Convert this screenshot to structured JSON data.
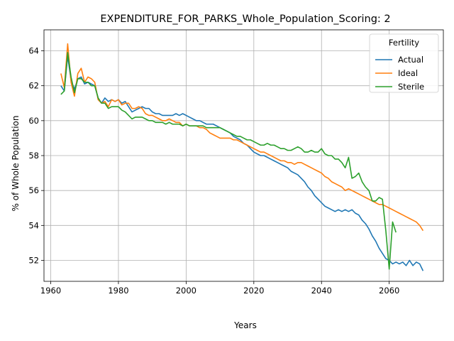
{
  "chart_data": {
    "type": "line",
    "title": "EXPENDITURE_FOR_PARKS_Whole_Population_Scoring: 2",
    "xlabel": "Years",
    "ylabel": "% of Whole Population",
    "xlim": [
      1958,
      2076
    ],
    "ylim": [
      50.8,
      65.2
    ],
    "xticks": [
      1960,
      1980,
      2000,
      2020,
      2040,
      2060
    ],
    "yticks": [
      52,
      54,
      56,
      58,
      60,
      62,
      64
    ],
    "grid": true,
    "legend": {
      "title": "Fertility",
      "placement": "top-right"
    },
    "series": [
      {
        "name": "Actual",
        "color": "#1f77b4",
        "points": [
          [
            1963,
            62.0
          ],
          [
            1964,
            61.7
          ],
          [
            1965,
            63.7
          ],
          [
            1966,
            62.3
          ],
          [
            1967,
            61.8
          ],
          [
            1968,
            62.4
          ],
          [
            1969,
            62.5
          ],
          [
            1970,
            62.1
          ],
          [
            1971,
            62.2
          ],
          [
            1972,
            62.1
          ],
          [
            1973,
            62.0
          ],
          [
            1974,
            61.3
          ],
          [
            1975,
            61.0
          ],
          [
            1976,
            61.3
          ],
          [
            1977,
            61.1
          ],
          [
            1978,
            61.2
          ],
          [
            1979,
            61.1
          ],
          [
            1980,
            61.2
          ],
          [
            1981,
            61.0
          ],
          [
            1982,
            61.1
          ],
          [
            1983,
            60.8
          ],
          [
            1984,
            60.5
          ],
          [
            1985,
            60.6
          ],
          [
            1986,
            60.7
          ],
          [
            1987,
            60.8
          ],
          [
            1988,
            60.7
          ],
          [
            1989,
            60.7
          ],
          [
            1990,
            60.5
          ],
          [
            1991,
            60.4
          ],
          [
            1992,
            60.4
          ],
          [
            1993,
            60.3
          ],
          [
            1994,
            60.3
          ],
          [
            1995,
            60.3
          ],
          [
            1996,
            60.3
          ],
          [
            1997,
            60.4
          ],
          [
            1998,
            60.3
          ],
          [
            1999,
            60.4
          ],
          [
            2000,
            60.3
          ],
          [
            2001,
            60.2
          ],
          [
            2002,
            60.1
          ],
          [
            2003,
            60.0
          ],
          [
            2004,
            60.0
          ],
          [
            2005,
            59.9
          ],
          [
            2006,
            59.8
          ],
          [
            2007,
            59.8
          ],
          [
            2008,
            59.8
          ],
          [
            2009,
            59.7
          ],
          [
            2010,
            59.6
          ],
          [
            2011,
            59.5
          ],
          [
            2012,
            59.4
          ],
          [
            2013,
            59.3
          ],
          [
            2014,
            59.1
          ],
          [
            2015,
            59.0
          ],
          [
            2016,
            58.9
          ],
          [
            2017,
            58.7
          ],
          [
            2018,
            58.6
          ],
          [
            2019,
            58.4
          ],
          [
            2020,
            58.2
          ],
          [
            2021,
            58.1
          ],
          [
            2022,
            58.0
          ],
          [
            2023,
            58.0
          ],
          [
            2024,
            57.9
          ],
          [
            2025,
            57.8
          ],
          [
            2026,
            57.7
          ],
          [
            2027,
            57.6
          ],
          [
            2028,
            57.5
          ],
          [
            2029,
            57.4
          ],
          [
            2030,
            57.3
          ],
          [
            2031,
            57.1
          ],
          [
            2032,
            57.0
          ],
          [
            2033,
            56.9
          ],
          [
            2034,
            56.7
          ],
          [
            2035,
            56.5
          ],
          [
            2036,
            56.2
          ],
          [
            2037,
            56.0
          ],
          [
            2038,
            55.7
          ],
          [
            2039,
            55.5
          ],
          [
            2040,
            55.3
          ],
          [
            2041,
            55.1
          ],
          [
            2042,
            55.0
          ],
          [
            2043,
            54.9
          ],
          [
            2044,
            54.8
          ],
          [
            2045,
            54.9
          ],
          [
            2046,
            54.8
          ],
          [
            2047,
            54.9
          ],
          [
            2048,
            54.8
          ],
          [
            2049,
            54.9
          ],
          [
            2050,
            54.7
          ],
          [
            2051,
            54.6
          ],
          [
            2052,
            54.3
          ],
          [
            2053,
            54.1
          ],
          [
            2054,
            53.8
          ],
          [
            2055,
            53.4
          ],
          [
            2056,
            53.1
          ],
          [
            2057,
            52.7
          ],
          [
            2058,
            52.4
          ],
          [
            2059,
            52.1
          ],
          [
            2060,
            52.0
          ],
          [
            2061,
            51.8
          ],
          [
            2062,
            51.9
          ],
          [
            2063,
            51.8
          ],
          [
            2064,
            51.9
          ],
          [
            2065,
            51.7
          ],
          [
            2066,
            52.0
          ],
          [
            2067,
            51.7
          ],
          [
            2068,
            51.9
          ],
          [
            2069,
            51.8
          ],
          [
            2070,
            51.4
          ]
        ]
      },
      {
        "name": "Ideal",
        "color": "#ff7f0e",
        "points": [
          [
            1963,
            62.7
          ],
          [
            1964,
            61.9
          ],
          [
            1965,
            64.4
          ],
          [
            1966,
            62.2
          ],
          [
            1967,
            61.4
          ],
          [
            1968,
            62.7
          ],
          [
            1969,
            63.0
          ],
          [
            1970,
            62.2
          ],
          [
            1971,
            62.5
          ],
          [
            1972,
            62.4
          ],
          [
            1973,
            62.2
          ],
          [
            1974,
            61.2
          ],
          [
            1975,
            61.0
          ],
          [
            1976,
            61.1
          ],
          [
            1977,
            60.8
          ],
          [
            1978,
            61.2
          ],
          [
            1979,
            61.1
          ],
          [
            1980,
            61.2
          ],
          [
            1981,
            60.9
          ],
          [
            1982,
            61.0
          ],
          [
            1983,
            61.0
          ],
          [
            1984,
            60.7
          ],
          [
            1985,
            60.7
          ],
          [
            1986,
            60.8
          ],
          [
            1987,
            60.7
          ],
          [
            1988,
            60.4
          ],
          [
            1989,
            60.3
          ],
          [
            1990,
            60.3
          ],
          [
            1991,
            60.2
          ],
          [
            1992,
            60.1
          ],
          [
            1993,
            60.0
          ],
          [
            1994,
            60.0
          ],
          [
            1995,
            60.1
          ],
          [
            1996,
            60.0
          ],
          [
            1997,
            59.9
          ],
          [
            1998,
            59.9
          ],
          [
            1999,
            59.7
          ],
          [
            2000,
            59.8
          ],
          [
            2001,
            59.7
          ],
          [
            2002,
            59.7
          ],
          [
            2003,
            59.7
          ],
          [
            2004,
            59.6
          ],
          [
            2005,
            59.6
          ],
          [
            2006,
            59.5
          ],
          [
            2007,
            59.3
          ],
          [
            2008,
            59.2
          ],
          [
            2009,
            59.1
          ],
          [
            2010,
            59.0
          ],
          [
            2011,
            59.0
          ],
          [
            2012,
            59.0
          ],
          [
            2013,
            59.0
          ],
          [
            2014,
            58.9
          ],
          [
            2015,
            58.9
          ],
          [
            2016,
            58.8
          ],
          [
            2017,
            58.7
          ],
          [
            2018,
            58.6
          ],
          [
            2019,
            58.5
          ],
          [
            2020,
            58.4
          ],
          [
            2021,
            58.3
          ],
          [
            2022,
            58.2
          ],
          [
            2023,
            58.2
          ],
          [
            2024,
            58.1
          ],
          [
            2025,
            58.0
          ],
          [
            2026,
            57.9
          ],
          [
            2027,
            57.8
          ],
          [
            2028,
            57.7
          ],
          [
            2029,
            57.7
          ],
          [
            2030,
            57.6
          ],
          [
            2031,
            57.6
          ],
          [
            2032,
            57.5
          ],
          [
            2033,
            57.6
          ],
          [
            2034,
            57.6
          ],
          [
            2035,
            57.5
          ],
          [
            2036,
            57.4
          ],
          [
            2037,
            57.3
          ],
          [
            2038,
            57.2
          ],
          [
            2039,
            57.1
          ],
          [
            2040,
            57.0
          ],
          [
            2041,
            56.8
          ],
          [
            2042,
            56.7
          ],
          [
            2043,
            56.5
          ],
          [
            2044,
            56.4
          ],
          [
            2045,
            56.3
          ],
          [
            2046,
            56.2
          ],
          [
            2047,
            56.0
          ],
          [
            2048,
            56.1
          ],
          [
            2049,
            56.0
          ],
          [
            2050,
            55.9
          ],
          [
            2051,
            55.8
          ],
          [
            2052,
            55.7
          ],
          [
            2053,
            55.6
          ],
          [
            2054,
            55.5
          ],
          [
            2055,
            55.4
          ],
          [
            2056,
            55.3
          ],
          [
            2057,
            55.2
          ],
          [
            2058,
            55.2
          ],
          [
            2059,
            55.1
          ],
          [
            2060,
            55.0
          ],
          [
            2061,
            54.9
          ],
          [
            2062,
            54.8
          ],
          [
            2063,
            54.7
          ],
          [
            2064,
            54.6
          ],
          [
            2065,
            54.5
          ],
          [
            2066,
            54.4
          ],
          [
            2067,
            54.3
          ],
          [
            2068,
            54.2
          ],
          [
            2069,
            54.0
          ],
          [
            2070,
            53.7
          ]
        ]
      },
      {
        "name": "Sterile",
        "color": "#2ca02c",
        "points": [
          [
            1963,
            61.5
          ],
          [
            1964,
            61.7
          ],
          [
            1965,
            63.9
          ],
          [
            1966,
            62.5
          ],
          [
            1967,
            61.6
          ],
          [
            1968,
            62.4
          ],
          [
            1969,
            62.4
          ],
          [
            1970,
            62.2
          ],
          [
            1971,
            62.2
          ],
          [
            1972,
            62.0
          ],
          [
            1973,
            62.0
          ],
          [
            1974,
            61.3
          ],
          [
            1975,
            61.0
          ],
          [
            1976,
            61.0
          ],
          [
            1977,
            60.7
          ],
          [
            1978,
            60.8
          ],
          [
            1979,
            60.8
          ],
          [
            1980,
            60.8
          ],
          [
            1981,
            60.6
          ],
          [
            1982,
            60.5
          ],
          [
            1983,
            60.3
          ],
          [
            1984,
            60.1
          ],
          [
            1985,
            60.2
          ],
          [
            1986,
            60.2
          ],
          [
            1987,
            60.2
          ],
          [
            1988,
            60.1
          ],
          [
            1989,
            60.0
          ],
          [
            1990,
            60.0
          ],
          [
            1991,
            59.9
          ],
          [
            1992,
            59.9
          ],
          [
            1993,
            59.9
          ],
          [
            1994,
            59.8
          ],
          [
            1995,
            59.9
          ],
          [
            1996,
            59.8
          ],
          [
            1997,
            59.8
          ],
          [
            1998,
            59.8
          ],
          [
            1999,
            59.7
          ],
          [
            2000,
            59.8
          ],
          [
            2001,
            59.7
          ],
          [
            2002,
            59.7
          ],
          [
            2003,
            59.7
          ],
          [
            2004,
            59.7
          ],
          [
            2005,
            59.7
          ],
          [
            2006,
            59.6
          ],
          [
            2007,
            59.6
          ],
          [
            2008,
            59.6
          ],
          [
            2009,
            59.6
          ],
          [
            2010,
            59.6
          ],
          [
            2011,
            59.5
          ],
          [
            2012,
            59.4
          ],
          [
            2013,
            59.3
          ],
          [
            2014,
            59.2
          ],
          [
            2015,
            59.1
          ],
          [
            2016,
            59.1
          ],
          [
            2017,
            59.0
          ],
          [
            2018,
            58.9
          ],
          [
            2019,
            58.9
          ],
          [
            2020,
            58.8
          ],
          [
            2021,
            58.7
          ],
          [
            2022,
            58.6
          ],
          [
            2023,
            58.6
          ],
          [
            2024,
            58.7
          ],
          [
            2025,
            58.6
          ],
          [
            2026,
            58.6
          ],
          [
            2027,
            58.5
          ],
          [
            2028,
            58.4
          ],
          [
            2029,
            58.4
          ],
          [
            2030,
            58.3
          ],
          [
            2031,
            58.3
          ],
          [
            2032,
            58.4
          ],
          [
            2033,
            58.5
          ],
          [
            2034,
            58.4
          ],
          [
            2035,
            58.2
          ],
          [
            2036,
            58.2
          ],
          [
            2037,
            58.3
          ],
          [
            2038,
            58.2
          ],
          [
            2039,
            58.2
          ],
          [
            2040,
            58.4
          ],
          [
            2041,
            58.1
          ],
          [
            2042,
            58.0
          ],
          [
            2043,
            58.0
          ],
          [
            2044,
            57.8
          ],
          [
            2045,
            57.8
          ],
          [
            2046,
            57.6
          ],
          [
            2047,
            57.3
          ],
          [
            2048,
            57.9
          ],
          [
            2049,
            56.7
          ],
          [
            2050,
            56.8
          ],
          [
            2051,
            57.0
          ],
          [
            2052,
            56.5
          ],
          [
            2053,
            56.2
          ],
          [
            2054,
            56.0
          ],
          [
            2055,
            55.4
          ],
          [
            2056,
            55.4
          ],
          [
            2057,
            55.6
          ],
          [
            2058,
            55.5
          ],
          [
            2059,
            53.7
          ],
          [
            2060,
            51.5
          ],
          [
            2061,
            54.2
          ],
          [
            2062,
            53.6
          ]
        ]
      }
    ]
  }
}
